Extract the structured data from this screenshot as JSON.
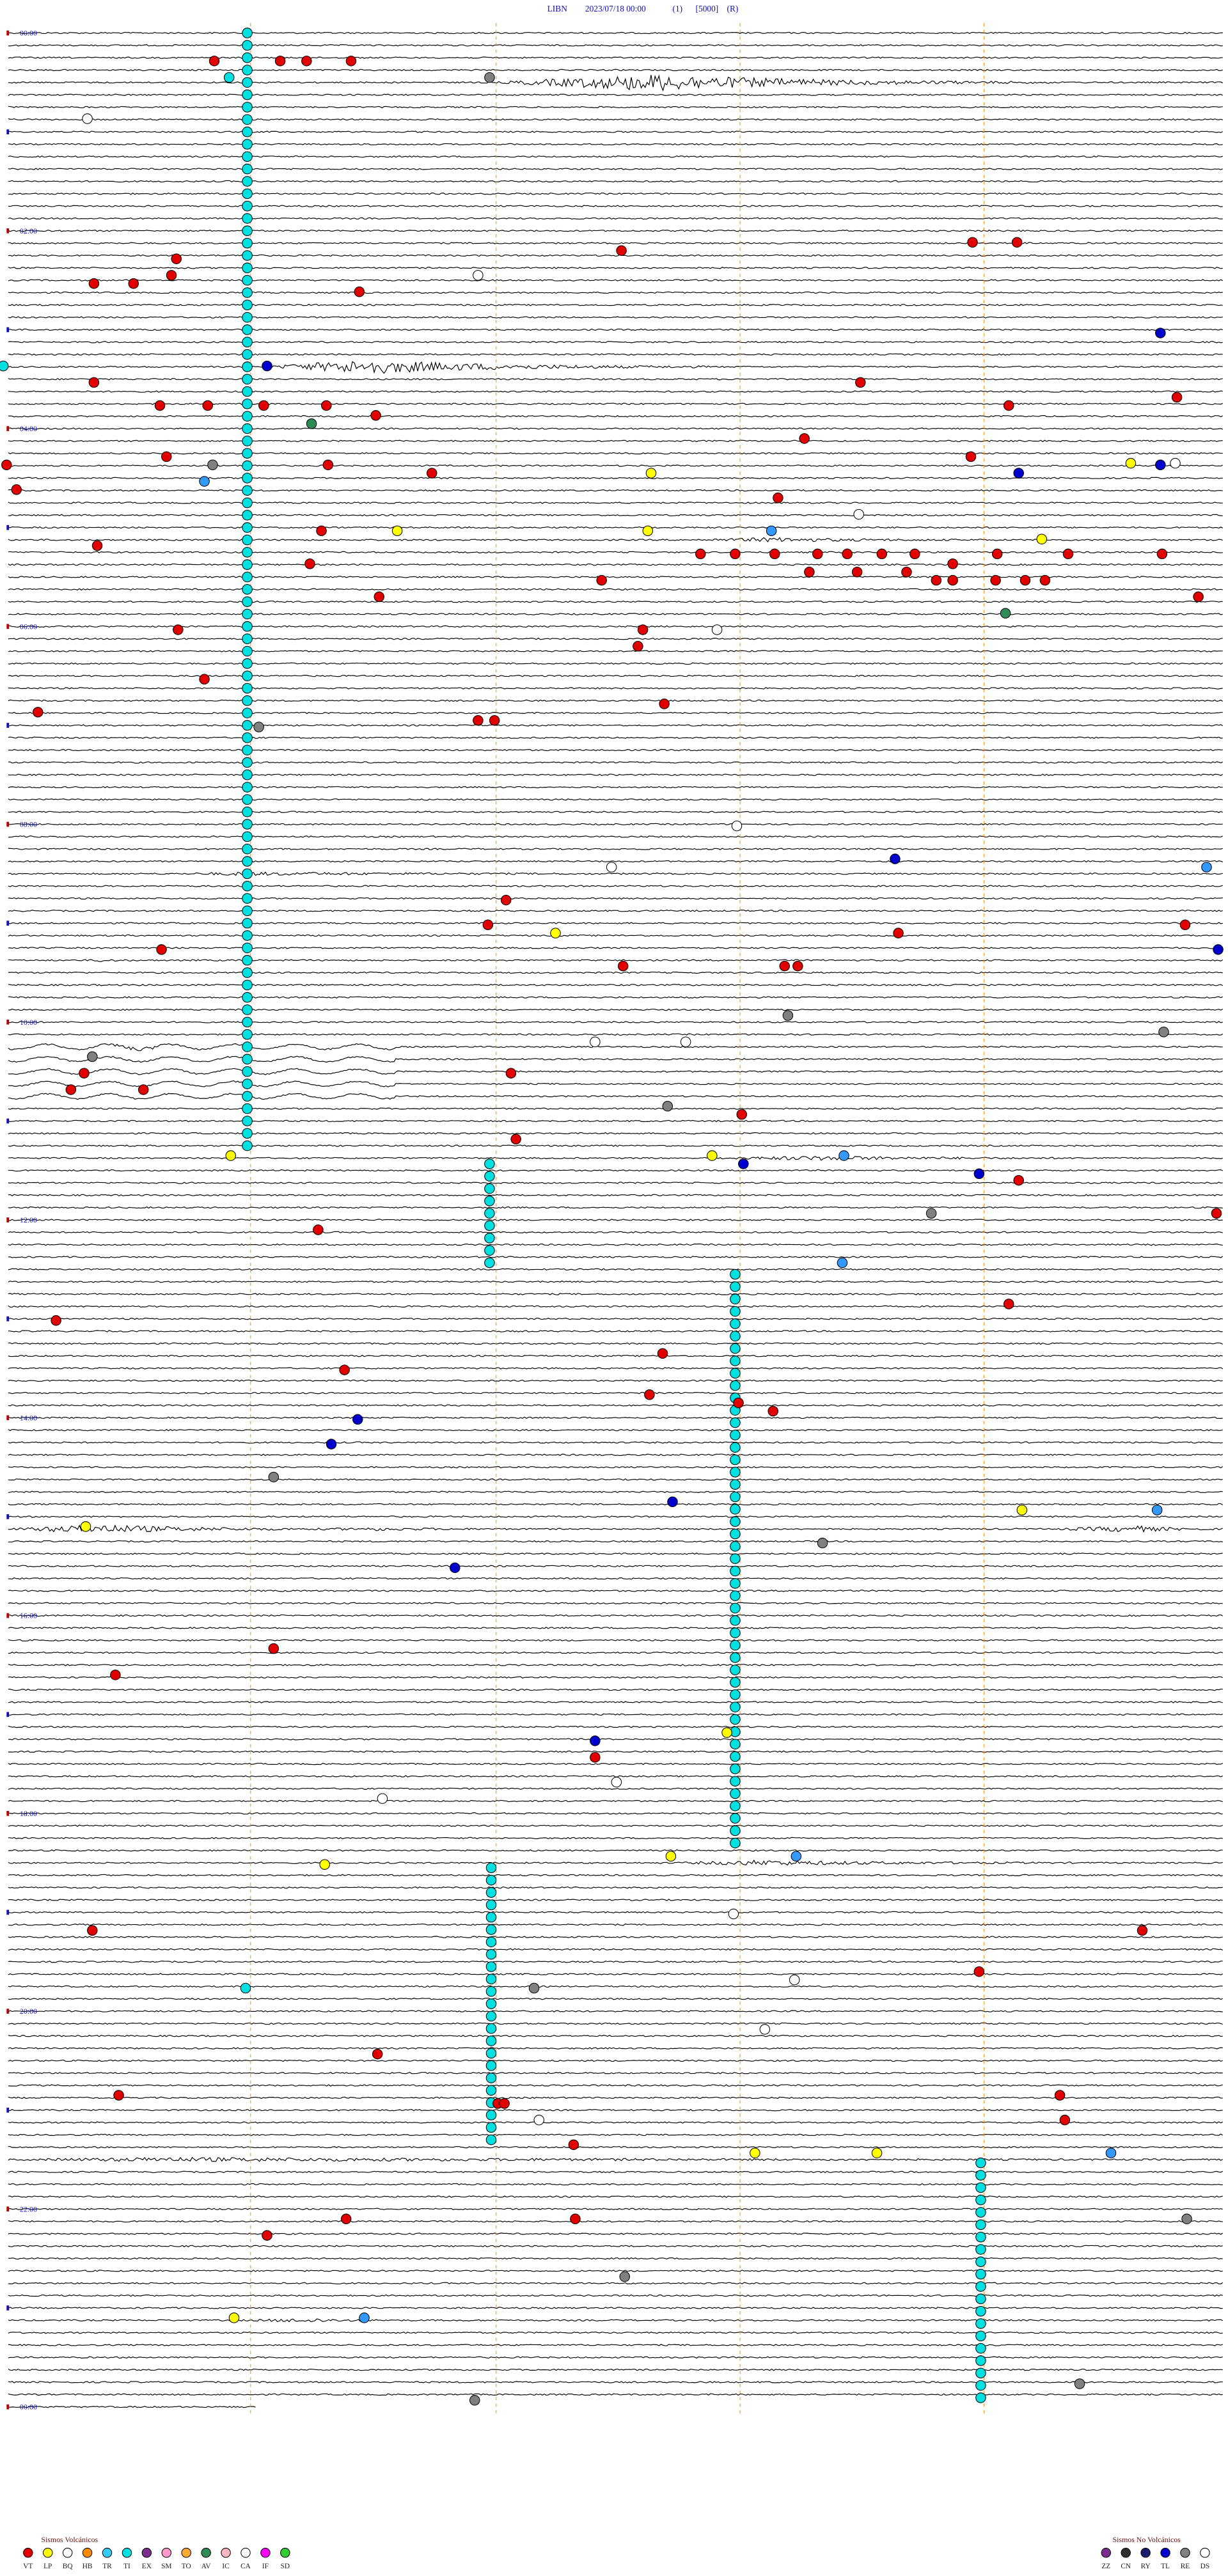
{
  "header": {
    "station": "LIBN",
    "datetime": "2023/07/18 00:00",
    "channel": "(1)",
    "scale": "[5000]",
    "mode": "(R)"
  },
  "hour_labels": [
    "00:00",
    "02:00",
    "04:00",
    "06:00",
    "08:00",
    "10:00",
    "12:00",
    "14:00",
    "16:00",
    "18:00",
    "20:00",
    "22:00",
    "00:00"
  ],
  "legend": {
    "volcanic": {
      "title": "Sismos Volcánicos",
      "codes": [
        "VT",
        "LP",
        "BQ",
        "HB",
        "TR",
        "TI",
        "EX",
        "SM",
        "TO",
        "AV",
        "IC",
        "CA",
        "IF",
        "SD"
      ]
    },
    "non_volcanic": {
      "title": "Sismos No Volcánicos",
      "codes": [
        "ZZ",
        "CN",
        "RY",
        "TL",
        "RE",
        "DS"
      ]
    }
  }
}
